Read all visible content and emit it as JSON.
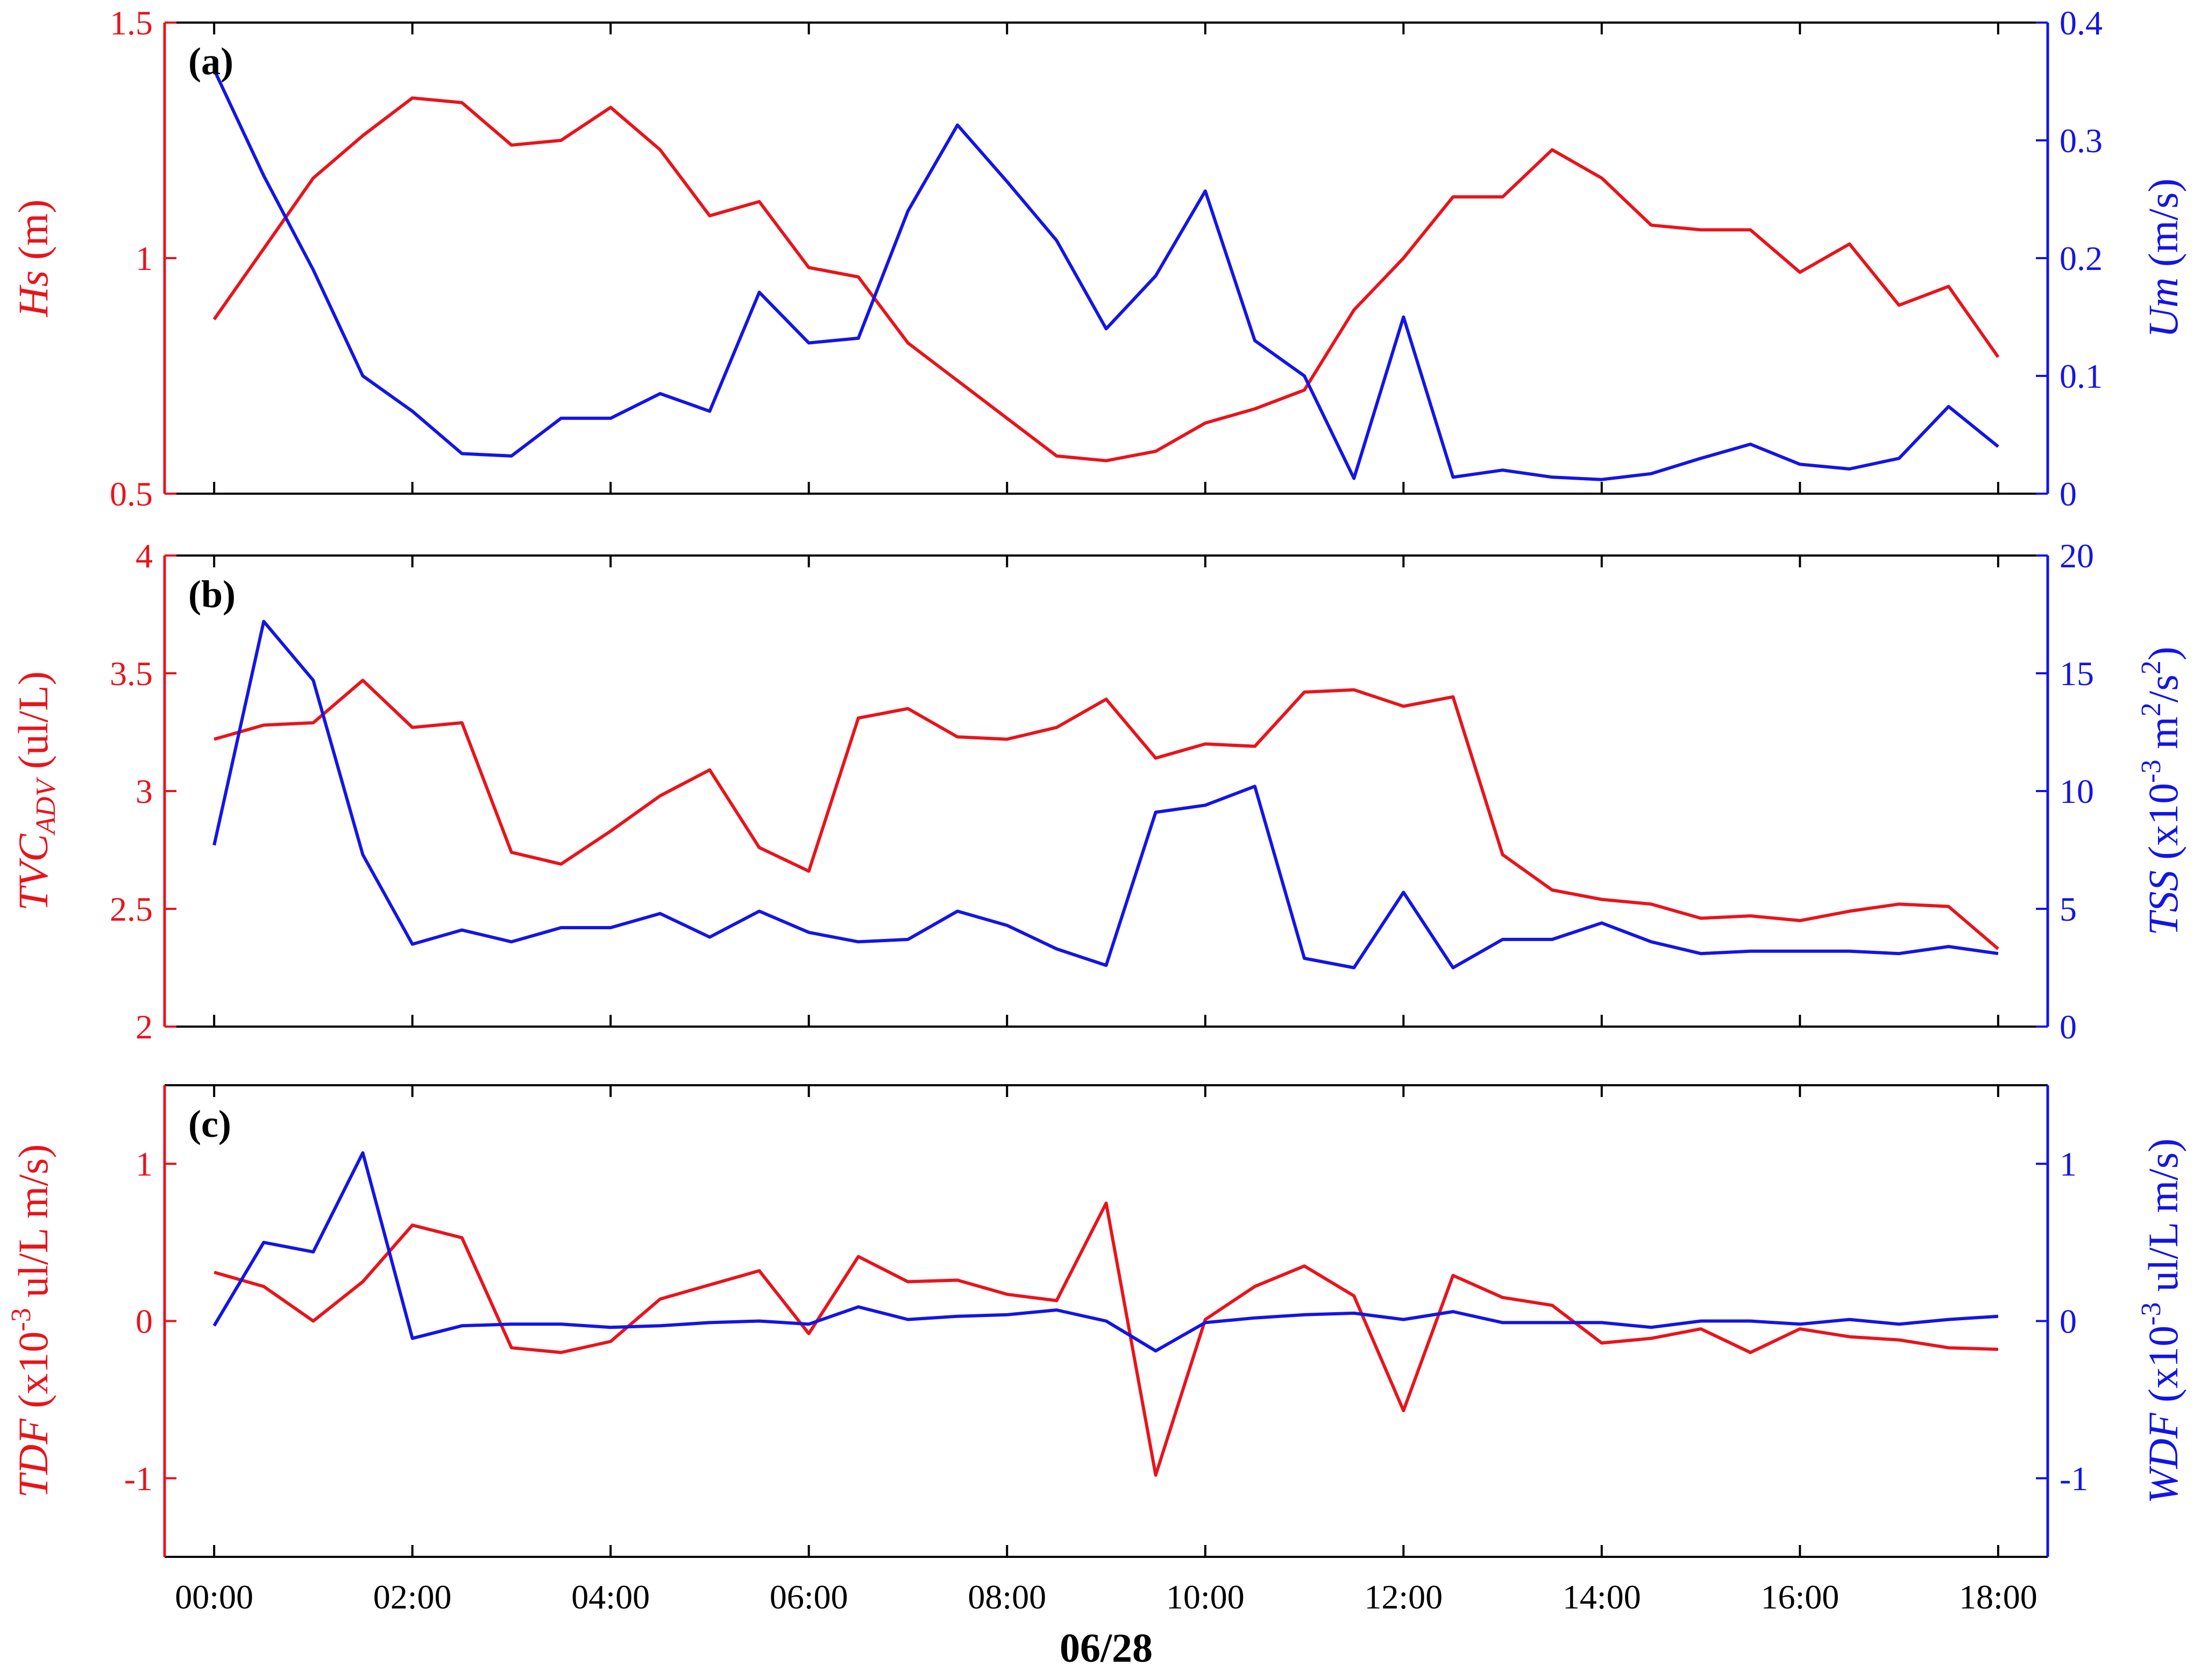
{
  "colors": {
    "left_axis": "#e8141c",
    "right_axis": "#1414e6",
    "frame": "#000000"
  },
  "xaxis": {
    "tick_labels": [
      "00:00",
      "02:00",
      "04:00",
      "06:00",
      "08:00",
      "10:00",
      "12:00",
      "14:00",
      "16:00",
      "18:00"
    ],
    "date_label": "06/28"
  },
  "chart_data": [
    {
      "type": "line",
      "panel_label": "(a)",
      "x_unit": "hours",
      "xlim": [
        -0.5,
        18.5
      ],
      "x": [
        0,
        0.5,
        1,
        1.5,
        2,
        2.5,
        3,
        3.5,
        4,
        4.5,
        5,
        5.5,
        6,
        6.5,
        7,
        7.5,
        8,
        8.5,
        9,
        9.5,
        10,
        10.5,
        11,
        11.5,
        12,
        12.5,
        13,
        13.5,
        14,
        14.5,
        15,
        15.5,
        16,
        16.5,
        17,
        17.5,
        18
      ],
      "left": {
        "label_var": "Hs",
        "label_unit": " (m)",
        "ylim": [
          0.5,
          1.5
        ],
        "tick_values": [
          0.5,
          1,
          1.5
        ],
        "tick_labels": [
          "0.5",
          "1",
          "1.5"
        ],
        "values": [
          0.87,
          1.02,
          1.17,
          1.26,
          1.34,
          1.33,
          1.24,
          1.25,
          1.32,
          1.23,
          1.09,
          1.12,
          0.98,
          0.96,
          0.82,
          0.74,
          0.66,
          0.58,
          0.57,
          0.59,
          0.65,
          0.68,
          0.72,
          0.89,
          1.0,
          1.13,
          1.13,
          1.23,
          1.17,
          1.07,
          1.06,
          1.06,
          0.97,
          1.03,
          0.9,
          0.94,
          0.79
        ]
      },
      "right": {
        "label_var": "Um",
        "label_unit": " (m/s)",
        "ylim": [
          0,
          0.4
        ],
        "tick_values": [
          0,
          0.1,
          0.2,
          0.3,
          0.4
        ],
        "tick_labels": [
          "0",
          "0.1",
          "0.2",
          "0.3",
          "0.4"
        ],
        "values": [
          0.36,
          0.27,
          0.19,
          0.1,
          0.07,
          0.034,
          0.032,
          0.064,
          0.064,
          0.085,
          0.07,
          0.171,
          0.128,
          0.132,
          0.24,
          0.313,
          0.265,
          0.215,
          0.14,
          0.185,
          0.257,
          0.13,
          0.1,
          0.013,
          0.15,
          0.014,
          0.02,
          0.014,
          0.012,
          0.017,
          0.03,
          0.042,
          0.025,
          0.021,
          0.03,
          0.074,
          0.04
        ]
      }
    },
    {
      "type": "line",
      "panel_label": "(b)",
      "x_unit": "hours",
      "xlim": [
        -0.5,
        18.5
      ],
      "x": [
        0,
        0.5,
        1,
        1.5,
        2,
        2.5,
        3,
        3.5,
        4,
        4.5,
        5,
        5.5,
        6,
        6.5,
        7,
        7.5,
        8,
        8.5,
        9,
        9.5,
        10,
        10.5,
        11,
        11.5,
        12,
        12.5,
        13,
        13.5,
        14,
        14.5,
        15,
        15.5,
        16,
        16.5,
        17,
        17.5,
        18
      ],
      "left": {
        "label_var": "TVC",
        "label_sub": "ADV",
        "label_unit": " (ul/L)",
        "ylim": [
          2,
          4
        ],
        "tick_values": [
          2,
          2.5,
          3,
          3.5,
          4
        ],
        "tick_labels": [
          "2",
          "2.5",
          "3",
          "3.5",
          "4"
        ],
        "values": [
          3.22,
          3.28,
          3.29,
          3.47,
          3.27,
          3.29,
          2.74,
          2.69,
          2.83,
          2.98,
          3.09,
          2.76,
          2.66,
          3.31,
          3.35,
          3.23,
          3.22,
          3.27,
          3.39,
          3.14,
          3.2,
          3.19,
          3.42,
          3.43,
          3.36,
          3.4,
          2.73,
          2.58,
          2.54,
          2.52,
          2.46,
          2.47,
          2.45,
          2.49,
          2.52,
          2.51,
          2.33
        ]
      },
      "right": {
        "label_var": "TSS",
        "label_unit": " (x10",
        "label_sup1": "-3",
        "label_unit2": " m",
        "label_sup2": "2",
        "label_unit3": "/s",
        "label_sup3": "2",
        "label_unit4": ")",
        "ylim": [
          0,
          20
        ],
        "tick_values": [
          0,
          5,
          10,
          15,
          20
        ],
        "tick_labels": [
          "0",
          "5",
          "10",
          "15",
          "20"
        ],
        "values": [
          7.7,
          17.2,
          14.7,
          7.3,
          3.5,
          4.1,
          3.6,
          4.2,
          4.2,
          4.8,
          3.8,
          4.9,
          4.0,
          3.6,
          3.7,
          4.9,
          4.3,
          3.3,
          2.6,
          9.1,
          9.4,
          10.2,
          2.9,
          2.5,
          5.7,
          2.5,
          3.7,
          3.7,
          4.4,
          3.6,
          3.1,
          3.2,
          3.2,
          3.2,
          3.1,
          3.4,
          3.1
        ]
      }
    },
    {
      "type": "line",
      "panel_label": "(c)",
      "x_unit": "hours",
      "xlim": [
        -0.5,
        18.5
      ],
      "x": [
        0,
        0.5,
        1,
        1.5,
        2,
        2.5,
        3,
        3.5,
        4,
        4.5,
        5,
        5.5,
        6,
        6.5,
        7,
        7.5,
        8,
        8.5,
        9,
        9.5,
        10,
        10.5,
        11,
        11.5,
        12,
        12.5,
        13,
        13.5,
        14,
        14.5,
        15,
        15.5,
        16,
        16.5,
        17,
        17.5,
        18
      ],
      "left": {
        "label_var": "TDF",
        "label_unit": " (x10",
        "label_sup1": "-3",
        "label_unit2": " ul/L m/s)",
        "ylim": [
          -1.5,
          1.5
        ],
        "tick_values": [
          -1,
          0,
          1
        ],
        "tick_labels": [
          "-1",
          "0",
          "1"
        ],
        "values": [
          0.31,
          0.22,
          0.0,
          0.25,
          0.61,
          0.53,
          -0.17,
          -0.2,
          -0.13,
          0.14,
          0.23,
          0.32,
          -0.08,
          0.41,
          0.25,
          0.26,
          0.17,
          0.13,
          0.75,
          -0.98,
          0.01,
          0.22,
          0.35,
          0.16,
          -0.57,
          0.29,
          0.15,
          0.1,
          -0.14,
          -0.11,
          -0.05,
          -0.2,
          -0.05,
          -0.1,
          -0.12,
          -0.17,
          -0.18
        ]
      },
      "right": {
        "label_var": "WDF",
        "label_unit": " (x10",
        "label_sup1": "-3",
        "label_unit2": " ul/L m/s)",
        "ylim": [
          -1.5,
          1.5
        ],
        "tick_values": [
          -1,
          0,
          1
        ],
        "tick_labels": [
          "-1",
          "0",
          "1"
        ],
        "values": [
          -0.03,
          0.5,
          0.44,
          1.07,
          -0.11,
          -0.03,
          -0.02,
          -0.02,
          -0.04,
          -0.03,
          -0.01,
          0.0,
          -0.02,
          0.09,
          0.01,
          0.03,
          0.04,
          0.07,
          0.0,
          -0.19,
          -0.01,
          0.02,
          0.04,
          0.05,
          0.01,
          0.06,
          -0.01,
          -0.01,
          -0.01,
          -0.04,
          0.0,
          0.0,
          -0.02,
          0.01,
          -0.02,
          0.01,
          0.03
        ]
      }
    }
  ]
}
